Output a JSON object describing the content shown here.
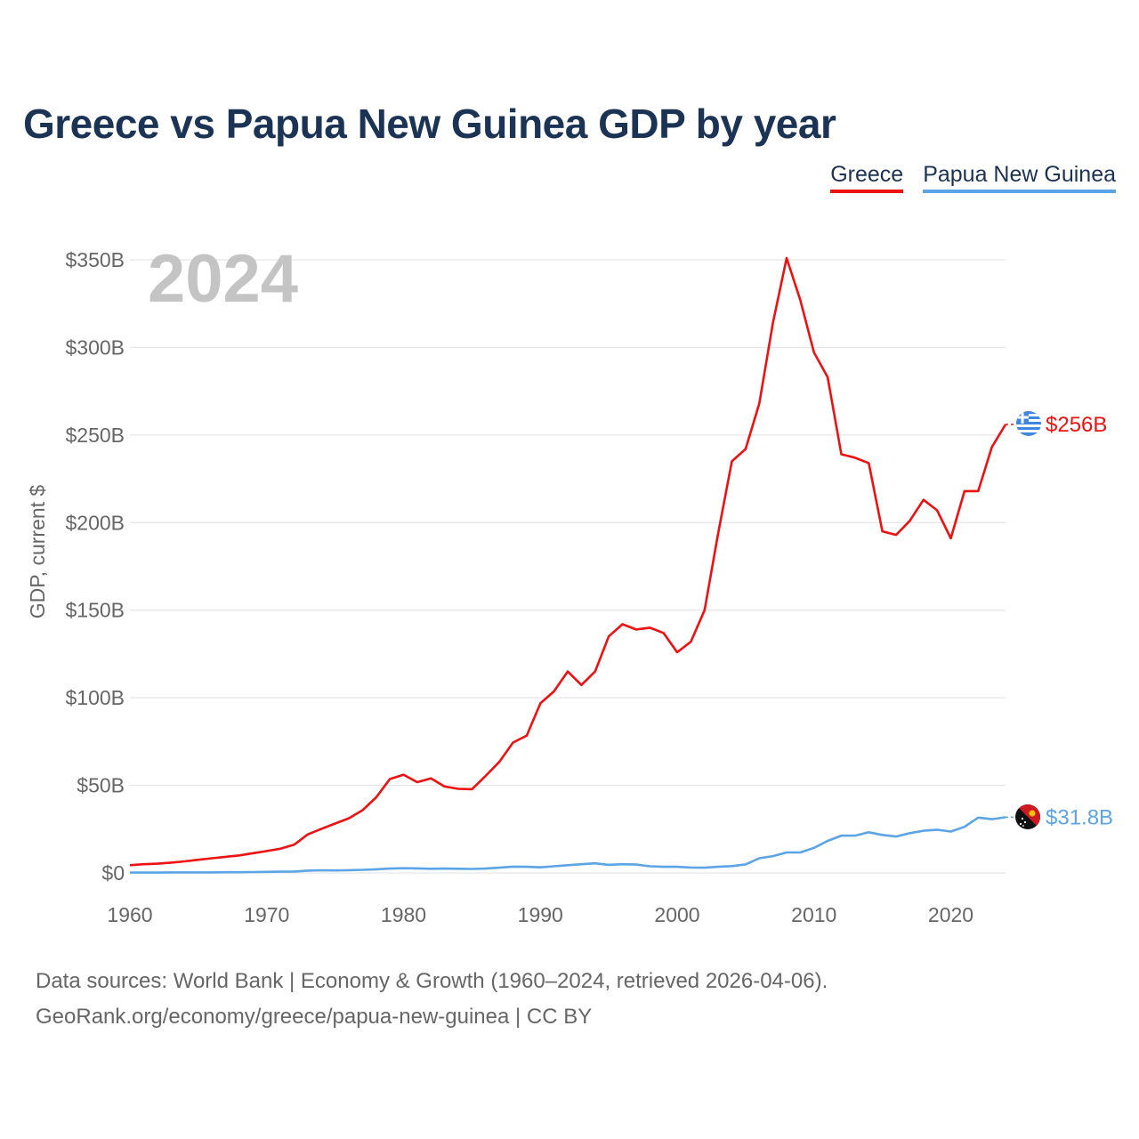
{
  "title": "Greece vs Papua New Guinea GDP by year",
  "legend": [
    {
      "name": "Greece",
      "color": "#ee1111"
    },
    {
      "name": "Papua New Guinea",
      "color": "#5ba4e5"
    }
  ],
  "year_label": "2024",
  "footer": {
    "line1": "Data sources: World Bank | Economy & Growth (1960–2024, retrieved 2026-04-06).",
    "line2": "GeoRank.org/economy/greece/papua-new-guinea | CC BY"
  },
  "chart_data": {
    "type": "line",
    "ylabel": "GDP, current $",
    "xlabel": "",
    "ylim": [
      0,
      350
    ],
    "xlim": [
      1960,
      2024
    ],
    "y_ticks": [
      0,
      50,
      100,
      150,
      200,
      250,
      300,
      350
    ],
    "y_tick_labels": [
      "$0",
      "$50B",
      "$100B",
      "$150B",
      "$200B",
      "$250B",
      "$300B",
      "$350B"
    ],
    "x_ticks": [
      1960,
      1970,
      1980,
      1990,
      2000,
      2010,
      2020
    ],
    "x_tick_labels": [
      "1960",
      "1970",
      "1980",
      "1990",
      "2000",
      "2010",
      "2020"
    ],
    "grid": true,
    "x": [
      1960,
      1961,
      1962,
      1963,
      1964,
      1965,
      1966,
      1967,
      1968,
      1969,
      1970,
      1971,
      1972,
      1973,
      1974,
      1975,
      1976,
      1977,
      1978,
      1979,
      1980,
      1981,
      1982,
      1983,
      1984,
      1985,
      1986,
      1987,
      1988,
      1989,
      1990,
      1991,
      1992,
      1993,
      1994,
      1995,
      1996,
      1997,
      1998,
      1999,
      2000,
      2001,
      2002,
      2003,
      2004,
      2005,
      2006,
      2007,
      2008,
      2009,
      2010,
      2011,
      2012,
      2013,
      2014,
      2015,
      2016,
      2017,
      2018,
      2019,
      2020,
      2021,
      2022,
      2023,
      2024
    ],
    "series": [
      {
        "name": "Greece",
        "color": "#ee1111",
        "end_label": "$256B",
        "values": [
          4.4,
          5.0,
          5.3,
          5.9,
          6.6,
          7.5,
          8.4,
          9.2,
          10.0,
          11.3,
          12.5,
          13.8,
          16.1,
          22.0,
          25.2,
          28.2,
          31.2,
          35.8,
          43.2,
          53.6,
          56.1,
          51.8,
          54.0,
          49.3,
          48.0,
          47.8,
          55.4,
          63.4,
          74.4,
          78.4,
          96.8,
          103.7,
          115.0,
          107.3,
          115.0,
          135.0,
          142.0,
          139.0,
          140.0,
          137.0,
          126.0,
          132.0,
          150.0,
          194.0,
          235.0,
          242.0,
          268.0,
          314.0,
          351.0,
          327.0,
          297.0,
          283.0,
          239.0,
          237.0,
          234.0,
          195.0,
          193.0,
          201.0,
          213.0,
          207.0,
          191.0,
          218.0,
          218.0,
          243.0,
          256.0
        ]
      },
      {
        "name": "Papua New Guinea",
        "color": "#5ba4e5",
        "end_label": "$31.8B",
        "values": [
          0.2,
          0.2,
          0.2,
          0.3,
          0.3,
          0.3,
          0.3,
          0.4,
          0.4,
          0.5,
          0.6,
          0.7,
          0.8,
          1.3,
          1.5,
          1.4,
          1.6,
          1.8,
          2.1,
          2.5,
          2.7,
          2.6,
          2.4,
          2.5,
          2.4,
          2.3,
          2.5,
          3.0,
          3.6,
          3.5,
          3.2,
          3.8,
          4.4,
          5.0,
          5.5,
          4.6,
          5.0,
          4.8,
          3.8,
          3.5,
          3.5,
          3.1,
          3.0,
          3.5,
          3.9,
          4.9,
          8.4,
          9.6,
          11.7,
          11.7,
          14.3,
          18.3,
          21.3,
          21.3,
          23.2,
          21.7,
          20.8,
          22.7,
          24.1,
          24.7,
          23.6,
          26.3,
          31.6,
          30.7,
          31.8
        ]
      }
    ]
  }
}
